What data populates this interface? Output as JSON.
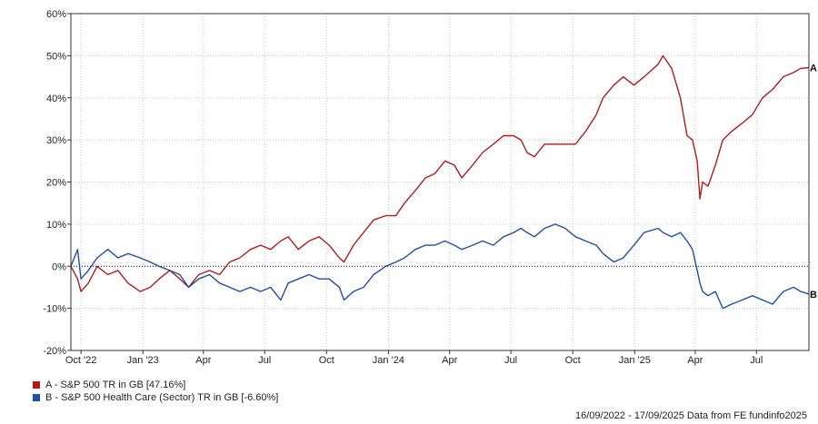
{
  "chart_data": {
    "type": "line",
    "date_range": "16/09/2022 - 17/09/2025",
    "y_ticks": [
      -20,
      -10,
      0,
      10,
      20,
      30,
      40,
      50,
      60
    ],
    "y_tick_labels": [
      "-20%",
      "-10%",
      "0%",
      "10%",
      "20%",
      "30%",
      "40%",
      "50%",
      "60%"
    ],
    "ylim": [
      -20,
      60
    ],
    "x_ticks": [
      {
        "label": "Oct '22",
        "date": "2022-10-01"
      },
      {
        "label": "Jan '23",
        "date": "2023-01-01"
      },
      {
        "label": "Apr",
        "date": "2023-04-01"
      },
      {
        "label": "Jul",
        "date": "2023-07-01"
      },
      {
        "label": "Oct",
        "date": "2023-10-01"
      },
      {
        "label": "Jan '24",
        "date": "2024-01-01"
      },
      {
        "label": "Apr",
        "date": "2024-04-01"
      },
      {
        "label": "Jul",
        "date": "2024-07-01"
      },
      {
        "label": "Oct",
        "date": "2024-10-01"
      },
      {
        "label": "Jan '25",
        "date": "2025-01-01"
      },
      {
        "label": "Apr",
        "date": "2025-04-01"
      },
      {
        "label": "Jul",
        "date": "2025-07-01"
      }
    ],
    "xlim": [
      "2022-09-16",
      "2025-09-17"
    ],
    "grid": true,
    "series": [
      {
        "name": "A - S&P 500 TR in GB [47.16%]",
        "end_label": "A",
        "color": "#b01c1c",
        "points": [
          [
            "2022-09-16",
            0
          ],
          [
            "2022-09-26",
            -3
          ],
          [
            "2022-10-01",
            -6
          ],
          [
            "2022-10-12",
            -4
          ],
          [
            "2022-10-25",
            0
          ],
          [
            "2022-11-10",
            -2
          ],
          [
            "2022-11-25",
            -1
          ],
          [
            "2022-12-10",
            -4
          ],
          [
            "2022-12-28",
            -6
          ],
          [
            "2023-01-12",
            -5
          ],
          [
            "2023-01-25",
            -3
          ],
          [
            "2023-02-10",
            -1
          ],
          [
            "2023-02-25",
            -3
          ],
          [
            "2023-03-10",
            -5
          ],
          [
            "2023-03-25",
            -2
          ],
          [
            "2023-04-10",
            -1
          ],
          [
            "2023-04-25",
            -2
          ],
          [
            "2023-05-10",
            1
          ],
          [
            "2023-05-25",
            2
          ],
          [
            "2023-06-10",
            4
          ],
          [
            "2023-06-25",
            5
          ],
          [
            "2023-07-10",
            4
          ],
          [
            "2023-07-25",
            6
          ],
          [
            "2023-08-05",
            7
          ],
          [
            "2023-08-20",
            4
          ],
          [
            "2023-09-05",
            6
          ],
          [
            "2023-09-20",
            7
          ],
          [
            "2023-10-05",
            5
          ],
          [
            "2023-10-20",
            2
          ],
          [
            "2023-10-27",
            1
          ],
          [
            "2023-11-10",
            5
          ],
          [
            "2023-11-25",
            8
          ],
          [
            "2023-12-10",
            11
          ],
          [
            "2023-12-28",
            12
          ],
          [
            "2024-01-12",
            12
          ],
          [
            "2024-01-25",
            15
          ],
          [
            "2024-02-10",
            18
          ],
          [
            "2024-02-25",
            21
          ],
          [
            "2024-03-10",
            22
          ],
          [
            "2024-03-25",
            25
          ],
          [
            "2024-04-08",
            24
          ],
          [
            "2024-04-19",
            21
          ],
          [
            "2024-05-05",
            24
          ],
          [
            "2024-05-20",
            27
          ],
          [
            "2024-06-05",
            29
          ],
          [
            "2024-06-20",
            31
          ],
          [
            "2024-07-05",
            31
          ],
          [
            "2024-07-16",
            30
          ],
          [
            "2024-07-25",
            27
          ],
          [
            "2024-08-05",
            26
          ],
          [
            "2024-08-20",
            29
          ],
          [
            "2024-09-05",
            29
          ],
          [
            "2024-09-20",
            29
          ],
          [
            "2024-10-05",
            29
          ],
          [
            "2024-10-20",
            32
          ],
          [
            "2024-11-05",
            36
          ],
          [
            "2024-11-15",
            40
          ],
          [
            "2024-12-01",
            43
          ],
          [
            "2024-12-15",
            45
          ],
          [
            "2024-12-31",
            43
          ],
          [
            "2025-01-15",
            45
          ],
          [
            "2025-02-05",
            48
          ],
          [
            "2025-02-12",
            50
          ],
          [
            "2025-02-25",
            47
          ],
          [
            "2025-03-10",
            40
          ],
          [
            "2025-03-20",
            31
          ],
          [
            "2025-03-28",
            30
          ],
          [
            "2025-04-04",
            25
          ],
          [
            "2025-04-08",
            16
          ],
          [
            "2025-04-12",
            20
          ],
          [
            "2025-04-20",
            19
          ],
          [
            "2025-05-01",
            24
          ],
          [
            "2025-05-12",
            30
          ],
          [
            "2025-05-25",
            32
          ],
          [
            "2025-06-10",
            34
          ],
          [
            "2025-06-25",
            36
          ],
          [
            "2025-07-10",
            40
          ],
          [
            "2025-07-25",
            42
          ],
          [
            "2025-08-10",
            45
          ],
          [
            "2025-08-25",
            46
          ],
          [
            "2025-09-05",
            47
          ],
          [
            "2025-09-17",
            47.16
          ]
        ]
      },
      {
        "name": "B - S&P 500 Health Care (Sector) TR in GB [-6.60%]",
        "end_label": "B",
        "color": "#1f4fa0",
        "points": [
          [
            "2022-09-16",
            0
          ],
          [
            "2022-09-26",
            4
          ],
          [
            "2022-10-01",
            -3
          ],
          [
            "2022-10-12",
            -1
          ],
          [
            "2022-10-25",
            2
          ],
          [
            "2022-11-10",
            4
          ],
          [
            "2022-11-25",
            2
          ],
          [
            "2022-12-10",
            3
          ],
          [
            "2022-12-28",
            2
          ],
          [
            "2023-01-12",
            1
          ],
          [
            "2023-01-25",
            0
          ],
          [
            "2023-02-10",
            -1
          ],
          [
            "2023-02-25",
            -2
          ],
          [
            "2023-03-10",
            -5
          ],
          [
            "2023-03-25",
            -3
          ],
          [
            "2023-04-10",
            -2
          ],
          [
            "2023-04-25",
            -4
          ],
          [
            "2023-05-10",
            -5
          ],
          [
            "2023-05-25",
            -6
          ],
          [
            "2023-06-10",
            -5
          ],
          [
            "2023-06-25",
            -6
          ],
          [
            "2023-07-10",
            -5
          ],
          [
            "2023-07-25",
            -8
          ],
          [
            "2023-08-05",
            -4
          ],
          [
            "2023-08-20",
            -3
          ],
          [
            "2023-09-05",
            -2
          ],
          [
            "2023-09-20",
            -3
          ],
          [
            "2023-10-05",
            -3
          ],
          [
            "2023-10-20",
            -5
          ],
          [
            "2023-10-27",
            -8
          ],
          [
            "2023-11-10",
            -6
          ],
          [
            "2023-11-25",
            -5
          ],
          [
            "2023-12-10",
            -2
          ],
          [
            "2023-12-28",
            0
          ],
          [
            "2024-01-12",
            1
          ],
          [
            "2024-01-25",
            2
          ],
          [
            "2024-02-10",
            4
          ],
          [
            "2024-02-25",
            5
          ],
          [
            "2024-03-10",
            5
          ],
          [
            "2024-03-25",
            6
          ],
          [
            "2024-04-08",
            5
          ],
          [
            "2024-04-19",
            4
          ],
          [
            "2024-05-05",
            5
          ],
          [
            "2024-05-20",
            6
          ],
          [
            "2024-06-05",
            5
          ],
          [
            "2024-06-20",
            7
          ],
          [
            "2024-07-05",
            8
          ],
          [
            "2024-07-16",
            9
          ],
          [
            "2024-07-25",
            8
          ],
          [
            "2024-08-05",
            7
          ],
          [
            "2024-08-20",
            9
          ],
          [
            "2024-09-05",
            10
          ],
          [
            "2024-09-20",
            9
          ],
          [
            "2024-10-05",
            7
          ],
          [
            "2024-10-20",
            6
          ],
          [
            "2024-11-05",
            5
          ],
          [
            "2024-11-15",
            3
          ],
          [
            "2024-12-01",
            1
          ],
          [
            "2024-12-15",
            2
          ],
          [
            "2024-12-31",
            5
          ],
          [
            "2025-01-15",
            8
          ],
          [
            "2025-02-05",
            9
          ],
          [
            "2025-02-12",
            8
          ],
          [
            "2025-02-25",
            7
          ],
          [
            "2025-03-10",
            8
          ],
          [
            "2025-03-20",
            6
          ],
          [
            "2025-03-28",
            4
          ],
          [
            "2025-04-04",
            -1
          ],
          [
            "2025-04-08",
            -4
          ],
          [
            "2025-04-12",
            -6
          ],
          [
            "2025-04-20",
            -7
          ],
          [
            "2025-05-01",
            -6
          ],
          [
            "2025-05-12",
            -10
          ],
          [
            "2025-05-25",
            -9
          ],
          [
            "2025-06-10",
            -8
          ],
          [
            "2025-06-25",
            -7
          ],
          [
            "2025-07-10",
            -8
          ],
          [
            "2025-07-25",
            -9
          ],
          [
            "2025-08-10",
            -6
          ],
          [
            "2025-08-25",
            -5
          ],
          [
            "2025-09-05",
            -6
          ],
          [
            "2025-09-17",
            -6.6
          ]
        ]
      }
    ]
  },
  "legend": {
    "items": [
      {
        "label": "A - S&P 500 TR in GB [47.16%]",
        "color": "#b01c1c"
      },
      {
        "label": "B - S&P 500 Health Care (Sector) TR in GB [-6.60%]",
        "color": "#1f4fa0"
      }
    ]
  },
  "footer": {
    "text": "16/09/2022 - 17/09/2025 Data from FE fundinfo2025"
  }
}
